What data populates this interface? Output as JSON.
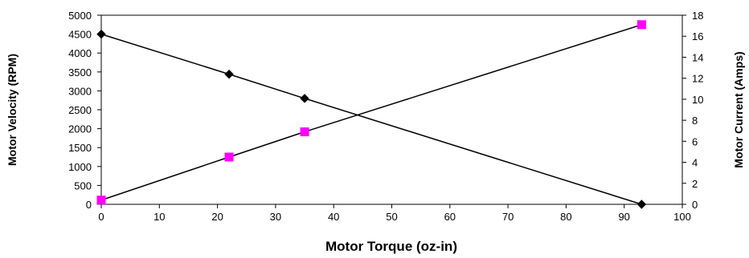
{
  "chart_data": {
    "type": "line",
    "xlabel": "Motor Torque (oz-in)",
    "ylabel": "Motor Velocity (RPM)",
    "y2label": "Motor Current (Amps)",
    "xlim": [
      0,
      100
    ],
    "ylim": [
      0,
      5000
    ],
    "y2lim": [
      0,
      18
    ],
    "x_ticks": [
      "0",
      "10",
      "20",
      "30",
      "40",
      "50",
      "60",
      "70",
      "80",
      "90",
      "100"
    ],
    "y_ticks": [
      "0",
      "500",
      "1000",
      "1500",
      "2000",
      "2500",
      "3000",
      "3500",
      "4000",
      "4500",
      "5000"
    ],
    "y2_ticks": [
      "0",
      "2",
      "4",
      "6",
      "8",
      "10",
      "12",
      "14",
      "16",
      "18"
    ],
    "grid": false,
    "legend": "none",
    "series": [
      {
        "axis": "left",
        "marker": "diamond",
        "color": "#000000",
        "x": [
          0,
          22,
          35,
          93
        ],
        "y": [
          4500,
          3440,
          2800,
          0
        ]
      },
      {
        "axis": "right",
        "marker": "square",
        "color": "#ff00ff",
        "x": [
          0,
          22,
          35,
          93
        ],
        "y": [
          0.4,
          4.5,
          6.9,
          17.1
        ]
      }
    ]
  }
}
